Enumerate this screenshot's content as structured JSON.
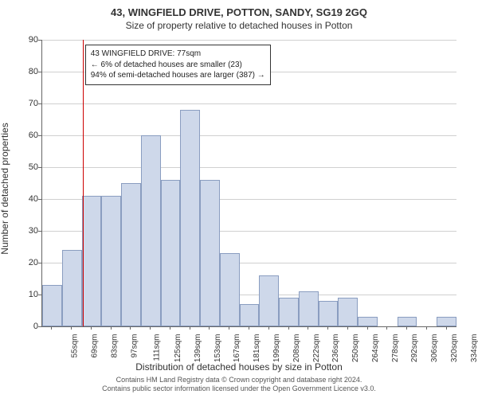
{
  "chart": {
    "type": "histogram",
    "title": "43, WINGFIELD DRIVE, POTTON, SANDY, SG19 2GQ",
    "subtitle": "Size of property relative to detached houses in Potton",
    "y_axis_label": "Number of detached properties",
    "x_axis_label": "Distribution of detached houses by size in Potton",
    "ylim": [
      0,
      90
    ],
    "ytick_step": 10,
    "yticks": [
      0,
      10,
      20,
      30,
      40,
      50,
      60,
      70,
      80,
      90
    ],
    "x_categories": [
      "55sqm",
      "69sqm",
      "83sqm",
      "97sqm",
      "111sqm",
      "125sqm",
      "139sqm",
      "153sqm",
      "167sqm",
      "181sqm",
      "199sqm",
      "208sqm",
      "222sqm",
      "236sqm",
      "250sqm",
      "264sqm",
      "278sqm",
      "292sqm",
      "306sqm",
      "320sqm",
      "334sqm"
    ],
    "values": [
      13,
      24,
      41,
      41,
      45,
      60,
      46,
      68,
      46,
      23,
      7,
      16,
      9,
      11,
      8,
      9,
      3,
      0,
      3,
      0,
      3
    ],
    "bar_fill": "#ced8ea",
    "bar_border": "#8a9dc0",
    "grid_color": "#d0d0d0",
    "axis_color": "#666666",
    "background_color": "#ffffff",
    "marker_value_index": 1.55,
    "marker_color": "#cc0000",
    "annotation": {
      "line1": "43 WINGFIELD DRIVE: 77sqm",
      "line2": "← 6% of detached houses are smaller (23)",
      "line3": "94% of semi-detached houses are larger (387) →"
    },
    "footer_line1": "Contains HM Land Registry data © Crown copyright and database right 2024.",
    "footer_line2": "Contains public sector information licensed under the Open Government Licence v3.0.",
    "title_fontsize": 13,
    "subtitle_fontsize": 12,
    "axis_label_fontsize": 12,
    "tick_fontsize": 11,
    "annotation_fontsize": 10,
    "footer_fontsize": 9
  }
}
